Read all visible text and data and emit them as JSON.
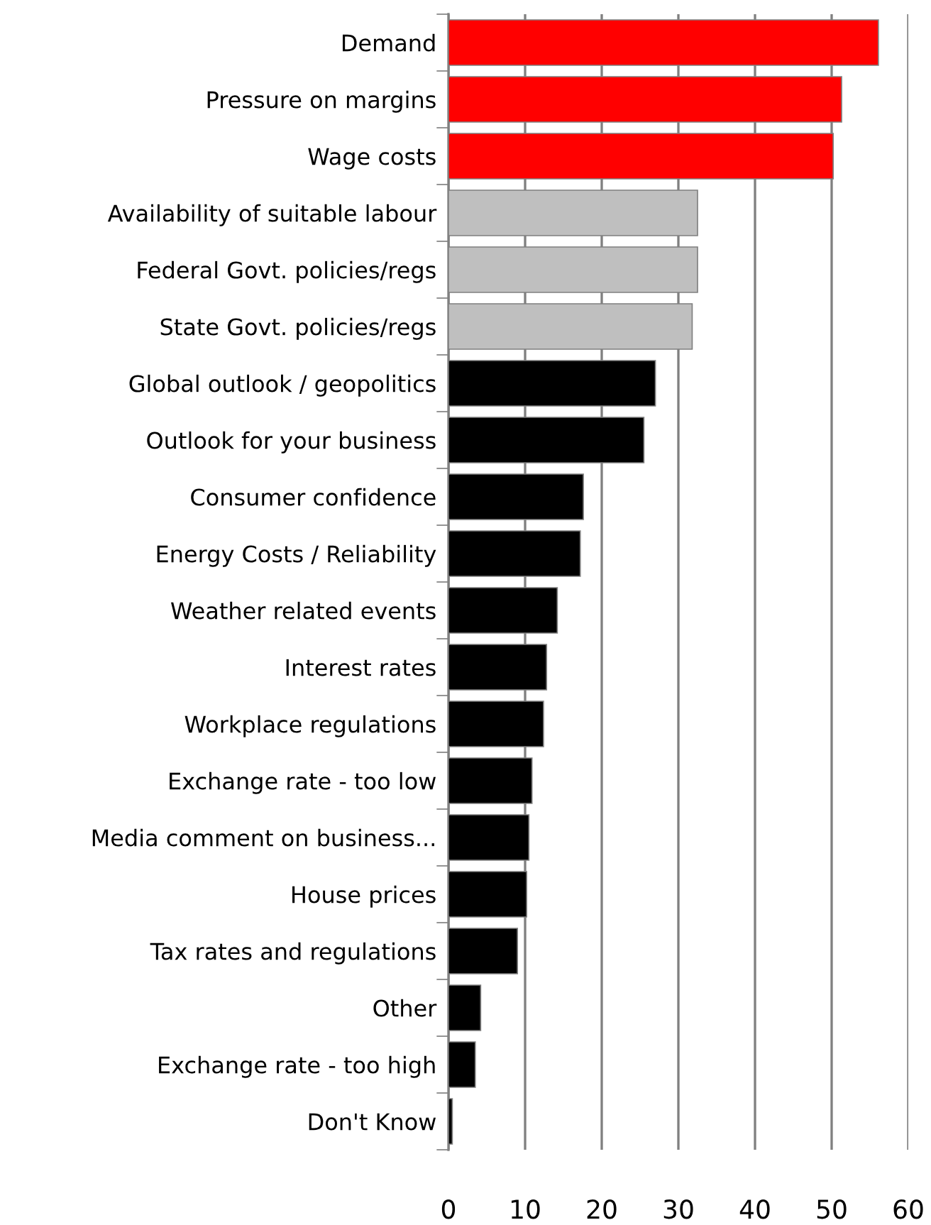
{
  "chart_data": {
    "type": "bar",
    "orientation": "horizontal",
    "categories": [
      "Demand",
      "Pressure on margins",
      "Wage costs",
      "Availability of suitable labour",
      "Federal Govt. policies/regs",
      "State Govt. policies/regs",
      "Global outlook / geopolitics",
      "Outlook for your business",
      "Consumer confidence",
      "Energy Costs / Reliability",
      "Weather related events",
      "Interest rates",
      "Workplace regulations",
      "Exchange rate - too low",
      "Media comment on business...",
      "House prices",
      "Tax rates and regulations",
      "Other",
      "Exchange rate - too high",
      "Don't Know"
    ],
    "values": [
      56.1,
      51.3,
      50.2,
      32.5,
      32.5,
      31.8,
      27.0,
      25.5,
      17.6,
      17.2,
      14.2,
      12.8,
      12.4,
      10.9,
      10.5,
      10.2,
      9.0,
      4.2,
      3.5,
      0.5
    ],
    "colors": [
      "#ff0000",
      "#ff0000",
      "#ff0000",
      "#bfbfbf",
      "#bfbfbf",
      "#bfbfbf",
      "#000000",
      "#000000",
      "#000000",
      "#000000",
      "#000000",
      "#000000",
      "#000000",
      "#000000",
      "#000000",
      "#000000",
      "#000000",
      "#000000",
      "#000000",
      "#000000"
    ],
    "xlim": [
      0,
      60
    ],
    "xticks": [
      0,
      10,
      20,
      30,
      40,
      50,
      60
    ],
    "grid": "x"
  }
}
